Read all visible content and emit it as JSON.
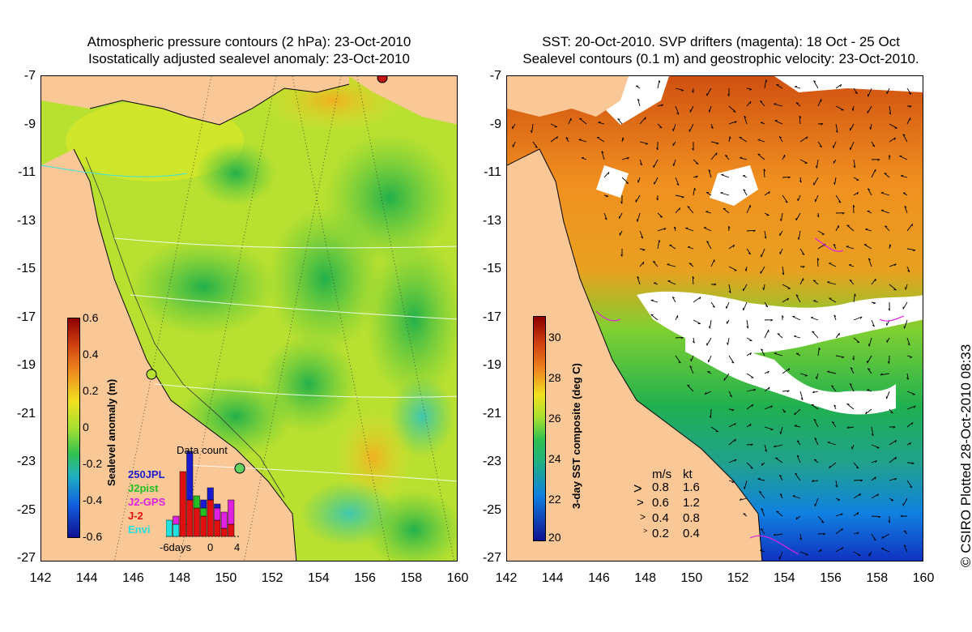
{
  "left": {
    "title_line1": "Atmospheric pressure contours (2 hPa): 23-Oct-2010",
    "title_line2": "Isostatically adjusted sealevel anomaly: 23-Oct-2010",
    "colorbar": {
      "title": "Sealevel anomaly (m)",
      "ticks": [
        "0.6",
        "0.4",
        "0.2",
        "0",
        "-0.2",
        "-0.4",
        "-0.6"
      ]
    },
    "data_count": {
      "title": "Data count",
      "legend": [
        {
          "label": "250JPL",
          "color": "#1a1ad0"
        },
        {
          "label": "J2pist",
          "color": "#22c022"
        },
        {
          "label": "J2-GPS",
          "color": "#e020e0"
        },
        {
          "label": "J-2",
          "color": "#e01010"
        },
        {
          "label": "Envi",
          "color": "#20e0e0"
        }
      ],
      "xlabels": [
        "-6days",
        "0",
        "4"
      ]
    }
  },
  "right": {
    "title_line1": "SST: 20-Oct-2010. SVP drifters (magenta): 18 Oct - 25 Oct",
    "title_line2": "Sealevel contours (0.1 m) and geostrophic velocity: 23-Oct-2010.",
    "colorbar": {
      "title": "3-day SST composite (deg C)",
      "ticks": [
        "30",
        "28",
        "26",
        "24",
        "22",
        "20"
      ]
    },
    "velocity_legend": {
      "header_ms": "m/s",
      "header_kt": "kt",
      "rows": [
        {
          "ms": "0.8",
          "kt": "1.6"
        },
        {
          "ms": "0.6",
          "kt": "1.2"
        },
        {
          "ms": "0.4",
          "kt": "0.8"
        },
        {
          "ms": "0.2",
          "kt": "0.4"
        }
      ]
    }
  },
  "axes": {
    "y_ticks": [
      "-7",
      "-9",
      "-11",
      "-13",
      "-15",
      "-17",
      "-19",
      "-21",
      "-23",
      "-25",
      "-27"
    ],
    "x_ticks": [
      "142",
      "144",
      "146",
      "148",
      "150",
      "152",
      "154",
      "156",
      "158",
      "160"
    ]
  },
  "credit": "© CSIRO Plotted 28-Oct-2010 08:33",
  "colors": {
    "land": "#fac896",
    "sst_warm": "#e07a10",
    "sst_cool": "#1070e0",
    "sla_mid": "#a0e030"
  }
}
